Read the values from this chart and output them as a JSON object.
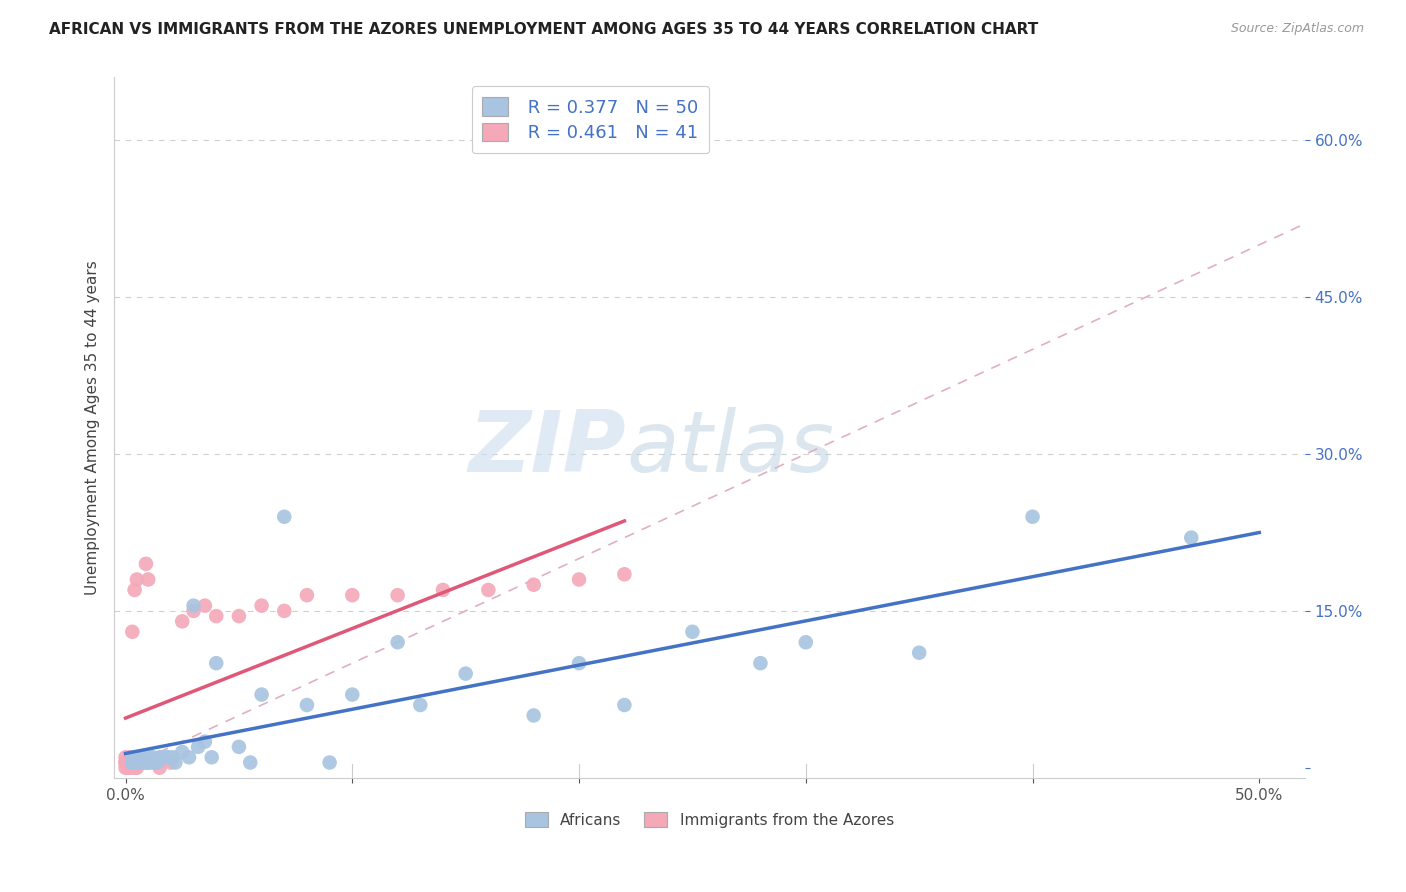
{
  "title": "AFRICAN VS IMMIGRANTS FROM THE AZORES UNEMPLOYMENT AMONG AGES 35 TO 44 YEARS CORRELATION CHART",
  "source": "Source: ZipAtlas.com",
  "ylabel": "Unemployment Among Ages 35 to 44 years",
  "xlim": [
    -0.005,
    0.52
  ],
  "ylim": [
    -0.01,
    0.66
  ],
  "xticks": [
    0.0,
    0.1,
    0.2,
    0.3,
    0.4,
    0.5
  ],
  "xticklabels": [
    "0.0%",
    "",
    "",
    "",
    "",
    "50.0%"
  ],
  "yticks": [
    0.0,
    0.15,
    0.3,
    0.45,
    0.6
  ],
  "yticklabels": [
    "",
    "15.0%",
    "30.0%",
    "45.0%",
    "60.0%"
  ],
  "africans_R": 0.377,
  "africans_N": 50,
  "azores_R": 0.461,
  "azores_N": 41,
  "africans_color": "#a8c4e0",
  "azores_color": "#f4a8b8",
  "africans_line_color": "#4472c4",
  "azores_line_color": "#e05878",
  "diagonal_color": "#c8c8c8",
  "watermark_zip": "ZIP",
  "watermark_atlas": "atlas",
  "africans_x": [
    0.003,
    0.003,
    0.003,
    0.004,
    0.004,
    0.005,
    0.005,
    0.005,
    0.006,
    0.007,
    0.008,
    0.009,
    0.01,
    0.01,
    0.011,
    0.012,
    0.013,
    0.014,
    0.015,
    0.016,
    0.018,
    0.019,
    0.021,
    0.022,
    0.025,
    0.028,
    0.03,
    0.032,
    0.035,
    0.038,
    0.04,
    0.05,
    0.055,
    0.06,
    0.07,
    0.08,
    0.09,
    0.1,
    0.12,
    0.13,
    0.15,
    0.18,
    0.2,
    0.22,
    0.25,
    0.28,
    0.3,
    0.35,
    0.4,
    0.47
  ],
  "africans_y": [
    0.005,
    0.005,
    0.01,
    0.005,
    0.005,
    0.005,
    0.01,
    0.01,
    0.01,
    0.01,
    0.005,
    0.005,
    0.005,
    0.01,
    0.005,
    0.01,
    0.005,
    0.005,
    0.01,
    0.01,
    0.01,
    0.01,
    0.01,
    0.005,
    0.015,
    0.01,
    0.155,
    0.02,
    0.025,
    0.01,
    0.1,
    0.02,
    0.005,
    0.07,
    0.24,
    0.06,
    0.005,
    0.07,
    0.12,
    0.06,
    0.09,
    0.05,
    0.1,
    0.06,
    0.13,
    0.1,
    0.12,
    0.11,
    0.24,
    0.22
  ],
  "azores_x": [
    0.0,
    0.0,
    0.0,
    0.0,
    0.001,
    0.001,
    0.002,
    0.002,
    0.002,
    0.003,
    0.003,
    0.003,
    0.004,
    0.004,
    0.005,
    0.005,
    0.005,
    0.006,
    0.007,
    0.008,
    0.008,
    0.009,
    0.01,
    0.01,
    0.015,
    0.02,
    0.025,
    0.03,
    0.035,
    0.04,
    0.05,
    0.06,
    0.07,
    0.08,
    0.1,
    0.12,
    0.14,
    0.16,
    0.18,
    0.2,
    0.22
  ],
  "azores_y": [
    0.0,
    0.005,
    0.005,
    0.01,
    0.0,
    0.005,
    0.0,
    0.005,
    0.01,
    0.005,
    0.005,
    0.13,
    0.0,
    0.17,
    0.0,
    0.005,
    0.18,
    0.005,
    0.005,
    0.005,
    0.005,
    0.195,
    0.005,
    0.18,
    0.0,
    0.005,
    0.14,
    0.15,
    0.155,
    0.145,
    0.145,
    0.155,
    0.15,
    0.165,
    0.165,
    0.165,
    0.17,
    0.17,
    0.175,
    0.18,
    0.185
  ],
  "background_color": "#ffffff",
  "grid_color": "#d0d0d0"
}
